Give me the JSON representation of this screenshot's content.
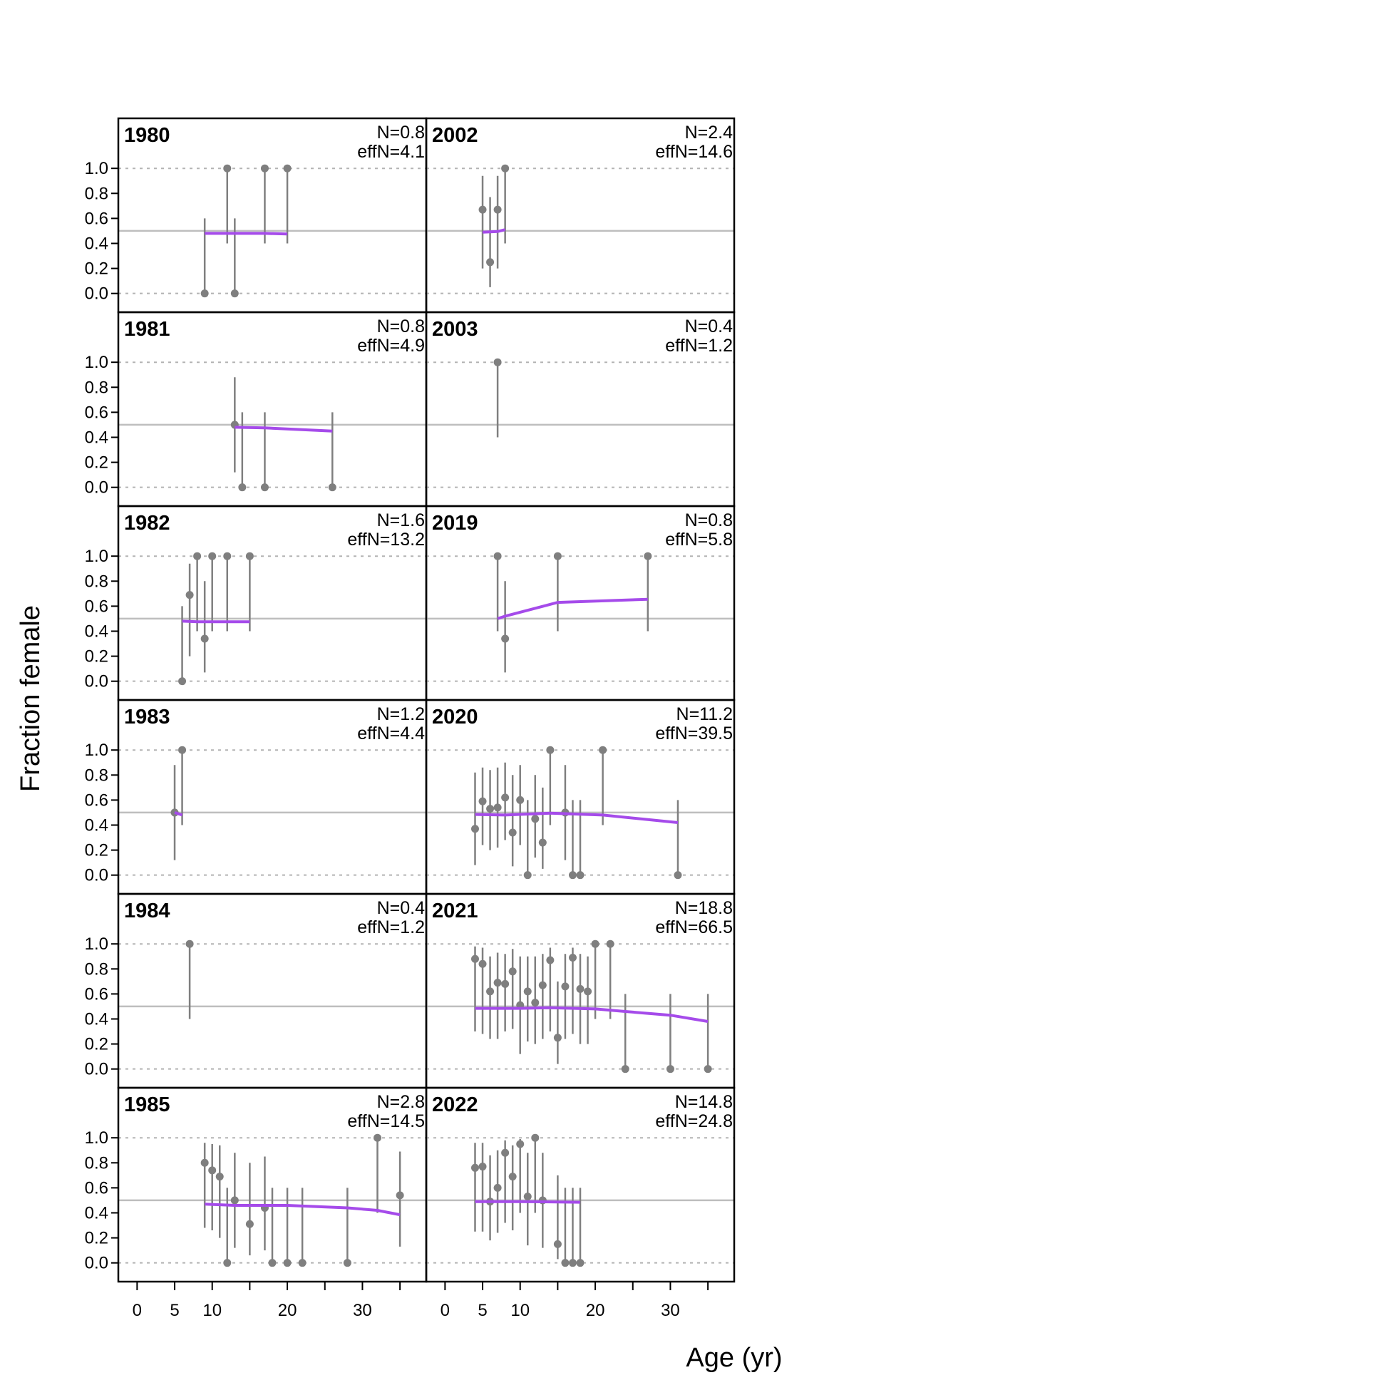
{
  "chart_data": {
    "type": "scatter",
    "xlabel": "Age (yr)",
    "ylabel": "Fraction female",
    "x_ticks": [
      0,
      5,
      10,
      20,
      30
    ],
    "x_minor_ticks": [
      15,
      25,
      35
    ],
    "y_ticks": [
      "0.0",
      "0.2",
      "0.4",
      "0.6",
      "0.8",
      "1.0"
    ],
    "xlim": [
      -2.5,
      38.5
    ],
    "ylim": [
      -0.15,
      1.4
    ],
    "reference_line": 0.5,
    "colors": {
      "points": "#7f7f7f",
      "fit": "#a54bea",
      "reference": "#bebebe",
      "grid": "#b3b3b3",
      "frame": "#000000"
    },
    "panels": [
      {
        "year": "1980",
        "n": "N=0.8",
        "effn": "effN=4.1",
        "points": [
          [
            9,
            0,
            0,
            0.6
          ],
          [
            12,
            1,
            0.4,
            1
          ],
          [
            13,
            0,
            0,
            0.6
          ],
          [
            17,
            1,
            0.4,
            1
          ],
          [
            20,
            1,
            0.4,
            1
          ]
        ],
        "fit": [
          [
            9,
            0.48
          ],
          [
            17,
            0.48
          ],
          [
            20,
            0.475
          ]
        ]
      },
      {
        "year": "2002",
        "n": "N=2.4",
        "effn": "effN=14.6",
        "points": [
          [
            5,
            0.67,
            0.2,
            0.94
          ],
          [
            6,
            0.25,
            0.05,
            0.77
          ],
          [
            7,
            0.67,
            0.2,
            0.94
          ],
          [
            8,
            1,
            0.4,
            1
          ]
        ],
        "fit": [
          [
            5,
            0.49
          ],
          [
            7,
            0.495
          ],
          [
            8,
            0.51
          ]
        ]
      },
      {
        "year": "1981",
        "n": "N=0.8",
        "effn": "effN=4.9",
        "points": [
          [
            13,
            0.5,
            0.12,
            0.88
          ],
          [
            14,
            0,
            0,
            0.6
          ],
          [
            17,
            0,
            0,
            0.6
          ],
          [
            26,
            0,
            0,
            0.6
          ]
        ],
        "fit": [
          [
            13,
            0.48
          ],
          [
            17,
            0.475
          ],
          [
            26,
            0.45
          ]
        ]
      },
      {
        "year": "2003",
        "n": "N=0.4",
        "effn": "effN=1.2",
        "points": [
          [
            7,
            1,
            0.4,
            1
          ]
        ],
        "fit": []
      },
      {
        "year": "1982",
        "n": "N=1.6",
        "effn": "effN=13.2",
        "points": [
          [
            6,
            0,
            0,
            0.6
          ],
          [
            7,
            0.69,
            0.2,
            0.94
          ],
          [
            8,
            1,
            0.4,
            1
          ],
          [
            9,
            0.34,
            0.07,
            0.8
          ],
          [
            10,
            1,
            0.4,
            1
          ],
          [
            12,
            1,
            0.4,
            1
          ],
          [
            15,
            1,
            0.4,
            1
          ]
        ],
        "fit": [
          [
            6,
            0.48
          ],
          [
            8,
            0.475
          ],
          [
            15,
            0.475
          ]
        ]
      },
      {
        "year": "2019",
        "n": "N=0.8",
        "effn": "effN=5.8",
        "points": [
          [
            7,
            1,
            0.4,
            1
          ],
          [
            8,
            0.34,
            0.07,
            0.8
          ],
          [
            15,
            1,
            0.4,
            1
          ],
          [
            27,
            1,
            0.4,
            1
          ]
        ],
        "fit": [
          [
            7,
            0.5
          ],
          [
            8,
            0.52
          ],
          [
            15,
            0.63
          ],
          [
            27,
            0.655
          ]
        ]
      },
      {
        "year": "1983",
        "n": "N=1.2",
        "effn": "effN=4.4",
        "points": [
          [
            5,
            0.5,
            0.12,
            0.88
          ],
          [
            6,
            1,
            0.4,
            1
          ]
        ],
        "fit": [
          [
            5,
            0.5
          ],
          [
            6,
            0.48
          ]
        ]
      },
      {
        "year": "2020",
        "n": "N=11.2",
        "effn": "effN=39.5",
        "points": [
          [
            4,
            0.37,
            0.08,
            0.82
          ],
          [
            5,
            0.59,
            0.24,
            0.86
          ],
          [
            6,
            0.53,
            0.2,
            0.84
          ],
          [
            7,
            0.54,
            0.22,
            0.86
          ],
          [
            8,
            0.62,
            0.28,
            0.9
          ],
          [
            9,
            0.34,
            0.07,
            0.8
          ],
          [
            10,
            0.6,
            0.24,
            0.88
          ],
          [
            11,
            0,
            0,
            0.6
          ],
          [
            12,
            0.45,
            0.14,
            0.8
          ],
          [
            13,
            0.26,
            0.05,
            0.7
          ],
          [
            14,
            1,
            0.4,
            1
          ],
          [
            16,
            0.5,
            0.12,
            0.88
          ],
          [
            17,
            0,
            0,
            0.6
          ],
          [
            18,
            0,
            0,
            0.6
          ],
          [
            21,
            1,
            0.4,
            1
          ],
          [
            31,
            0,
            0,
            0.6
          ]
        ],
        "fit": [
          [
            4,
            0.485
          ],
          [
            8,
            0.48
          ],
          [
            14,
            0.495
          ],
          [
            21,
            0.48
          ],
          [
            31,
            0.42
          ]
        ]
      },
      {
        "year": "1984",
        "n": "N=0.4",
        "effn": "effN=1.2",
        "points": [
          [
            7,
            1,
            0.4,
            1
          ]
        ],
        "fit": []
      },
      {
        "year": "2021",
        "n": "N=18.8",
        "effn": "effN=66.5",
        "points": [
          [
            4,
            0.88,
            0.3,
            0.98
          ],
          [
            5,
            0.84,
            0.28,
            0.97
          ],
          [
            6,
            0.62,
            0.24,
            0.9
          ],
          [
            7,
            0.69,
            0.24,
            0.93
          ],
          [
            8,
            0.68,
            0.3,
            0.92
          ],
          [
            9,
            0.78,
            0.32,
            0.96
          ],
          [
            10,
            0.51,
            0.12,
            0.9
          ],
          [
            11,
            0.62,
            0.22,
            0.9
          ],
          [
            12,
            0.53,
            0.2,
            0.9
          ],
          [
            13,
            0.67,
            0.24,
            0.92
          ],
          [
            14,
            0.87,
            0.3,
            0.97
          ],
          [
            15,
            0.25,
            0.04,
            0.7
          ],
          [
            16,
            0.66,
            0.24,
            0.92
          ],
          [
            17,
            0.89,
            0.28,
            0.97
          ],
          [
            18,
            0.64,
            0.2,
            0.92
          ],
          [
            19,
            0.62,
            0.2,
            0.9
          ],
          [
            20,
            1,
            0.4,
            1
          ],
          [
            22,
            1,
            0.4,
            1
          ],
          [
            24,
            0,
            0,
            0.6
          ],
          [
            30,
            0,
            0,
            0.6
          ],
          [
            35,
            0,
            0,
            0.6
          ]
        ],
        "fit": [
          [
            4,
            0.485
          ],
          [
            10,
            0.485
          ],
          [
            14,
            0.49
          ],
          [
            20,
            0.48
          ],
          [
            24,
            0.46
          ],
          [
            30,
            0.43
          ],
          [
            35,
            0.38
          ]
        ]
      },
      {
        "year": "1985",
        "n": "N=2.8",
        "effn": "effN=14.5",
        "points": [
          [
            9,
            0.8,
            0.28,
            0.96
          ],
          [
            10,
            0.74,
            0.26,
            0.95
          ],
          [
            11,
            0.69,
            0.2,
            0.94
          ],
          [
            12,
            0,
            0,
            0.6
          ],
          [
            13,
            0.5,
            0.12,
            0.88
          ],
          [
            15,
            0.31,
            0.06,
            0.8
          ],
          [
            17,
            0.44,
            0.1,
            0.85
          ],
          [
            18,
            0,
            0,
            0.6
          ],
          [
            20,
            0,
            0,
            0.6
          ],
          [
            22,
            0,
            0,
            0.6
          ],
          [
            28,
            0,
            0,
            0.6
          ],
          [
            32,
            1,
            0.4,
            1
          ],
          [
            35,
            0.54,
            0.13,
            0.89
          ]
        ],
        "fit": [
          [
            9,
            0.47
          ],
          [
            13,
            0.46
          ],
          [
            20,
            0.46
          ],
          [
            28,
            0.44
          ],
          [
            32,
            0.42
          ],
          [
            35,
            0.385
          ]
        ]
      },
      {
        "year": "2022",
        "n": "N=14.8",
        "effn": "effN=24.8",
        "points": [
          [
            4,
            0.76,
            0.25,
            0.96
          ],
          [
            5,
            0.77,
            0.25,
            0.96
          ],
          [
            6,
            0.49,
            0.18,
            0.86
          ],
          [
            7,
            0.6,
            0.24,
            0.9
          ],
          [
            8,
            0.88,
            0.32,
            0.98
          ],
          [
            9,
            0.69,
            0.26,
            0.94
          ],
          [
            10,
            0.95,
            0.4,
            0.99
          ],
          [
            11,
            0.53,
            0.14,
            0.88
          ],
          [
            12,
            1,
            0.4,
            1
          ],
          [
            13,
            0.5,
            0.12,
            0.88
          ],
          [
            15,
            0.15,
            0.03,
            0.7
          ],
          [
            16,
            0,
            0,
            0.6
          ],
          [
            17,
            0,
            0,
            0.6
          ],
          [
            18,
            0,
            0,
            0.6
          ]
        ],
        "fit": [
          [
            4,
            0.49
          ],
          [
            10,
            0.49
          ],
          [
            18,
            0.485
          ]
        ]
      }
    ]
  }
}
